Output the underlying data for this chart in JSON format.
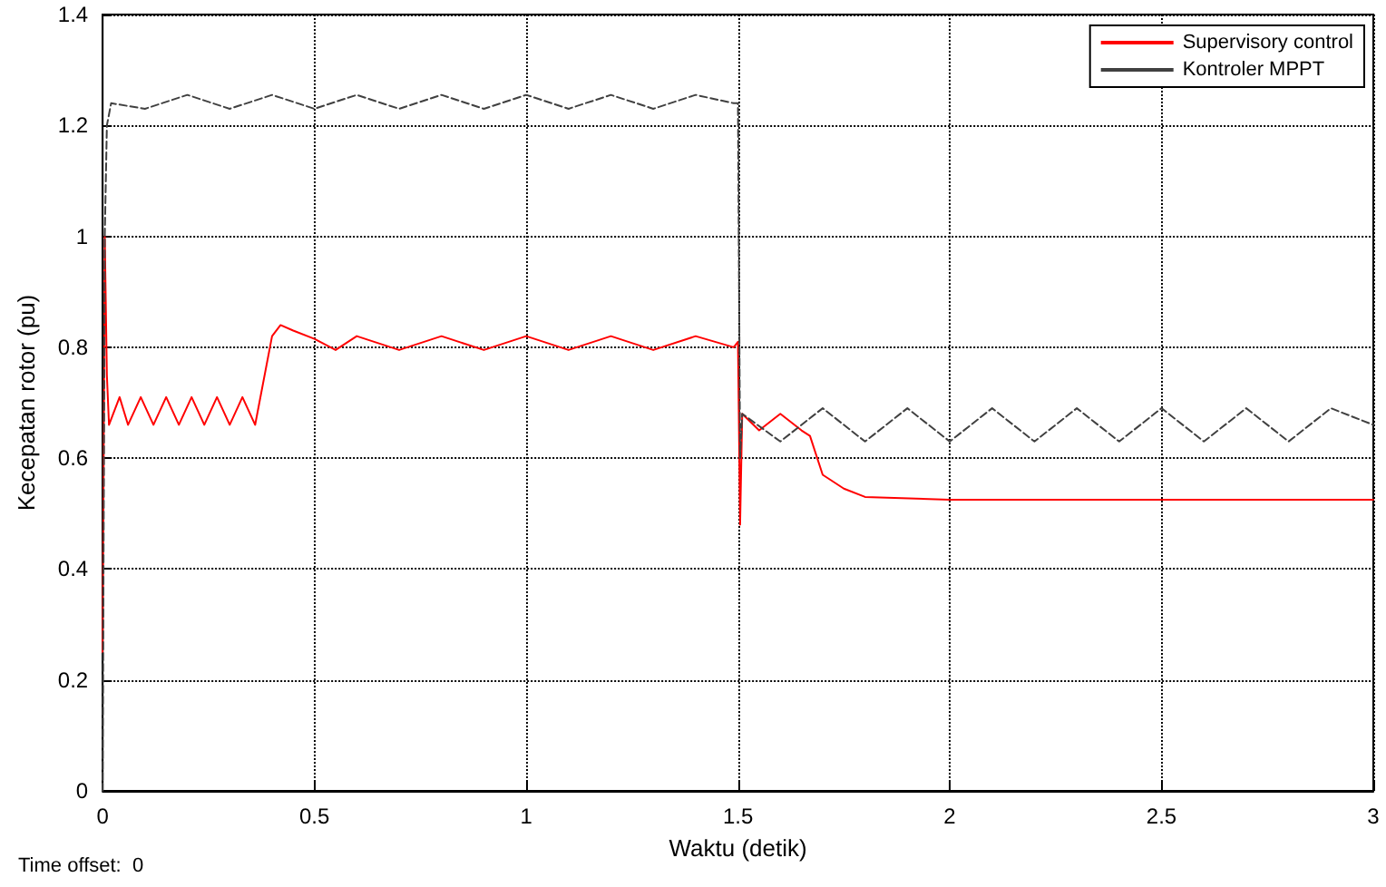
{
  "chart_data": {
    "type": "line",
    "xlabel": "Waktu (detik)",
    "ylabel": "Kecepatan rotor (pu)",
    "annotations": [
      "Time offset:  0"
    ],
    "xlim": [
      0,
      3
    ],
    "xticks": [
      0,
      0.5,
      1,
      1.5,
      2,
      2.5,
      3
    ],
    "ylim": [
      0,
      1.4
    ],
    "yticks": [
      0,
      0.2,
      0.4,
      0.6,
      0.8,
      1,
      1.2,
      1.4
    ],
    "grid": true,
    "legend": "top right",
    "marker": "none",
    "series": [
      {
        "name": "Supervisory control",
        "color": "#ff0000",
        "line_style": "solid",
        "x": [
          0,
          0.005,
          0.01,
          0.015,
          0.04,
          0.06,
          0.09,
          0.12,
          0.15,
          0.18,
          0.21,
          0.24,
          0.27,
          0.3,
          0.33,
          0.36,
          0.37,
          0.4,
          0.42,
          0.45,
          0.5,
          0.55,
          0.6,
          0.7,
          0.8,
          0.9,
          1.0,
          1.1,
          1.2,
          1.3,
          1.4,
          1.49,
          1.5,
          1.505,
          1.51,
          1.55,
          1.6,
          1.65,
          1.67,
          1.7,
          1.75,
          1.8,
          2,
          3
        ],
        "values": [
          0.25,
          1.0,
          0.75,
          0.66,
          0.71,
          0.66,
          0.71,
          0.66,
          0.71,
          0.66,
          0.71,
          0.66,
          0.71,
          0.66,
          0.71,
          0.66,
          0.7,
          0.82,
          0.84,
          0.83,
          0.815,
          0.795,
          0.82,
          0.795,
          0.82,
          0.795,
          0.82,
          0.795,
          0.82,
          0.795,
          0.82,
          0.8,
          0.81,
          0.48,
          0.68,
          0.65,
          0.68,
          0.65,
          0.64,
          0.57,
          0.545,
          0.53,
          0.525,
          0.525
        ]
      },
      {
        "name": "Kontroler MPPT",
        "color": "#404040",
        "line_style": "dashed",
        "x": [
          0,
          0.005,
          0.01,
          0.02,
          0.1,
          0.2,
          0.3,
          0.4,
          0.5,
          0.6,
          0.7,
          0.8,
          0.9,
          1.0,
          1.1,
          1.2,
          1.3,
          1.4,
          1.49,
          1.5,
          1.505,
          1.51,
          1.6,
          1.7,
          1.8,
          1.9,
          2.0,
          2.1,
          2.2,
          2.3,
          2.4,
          2.5,
          2.6,
          2.7,
          2.8,
          2.9,
          3
        ],
        "values": [
          0,
          1.0,
          1.2,
          1.24,
          1.23,
          1.255,
          1.23,
          1.255,
          1.23,
          1.255,
          1.23,
          1.255,
          1.23,
          1.255,
          1.23,
          1.255,
          1.23,
          1.255,
          1.24,
          1.24,
          0.6,
          0.68,
          0.63,
          0.69,
          0.63,
          0.69,
          0.63,
          0.69,
          0.63,
          0.69,
          0.63,
          0.69,
          0.63,
          0.69,
          0.63,
          0.69,
          0.66
        ]
      }
    ]
  }
}
